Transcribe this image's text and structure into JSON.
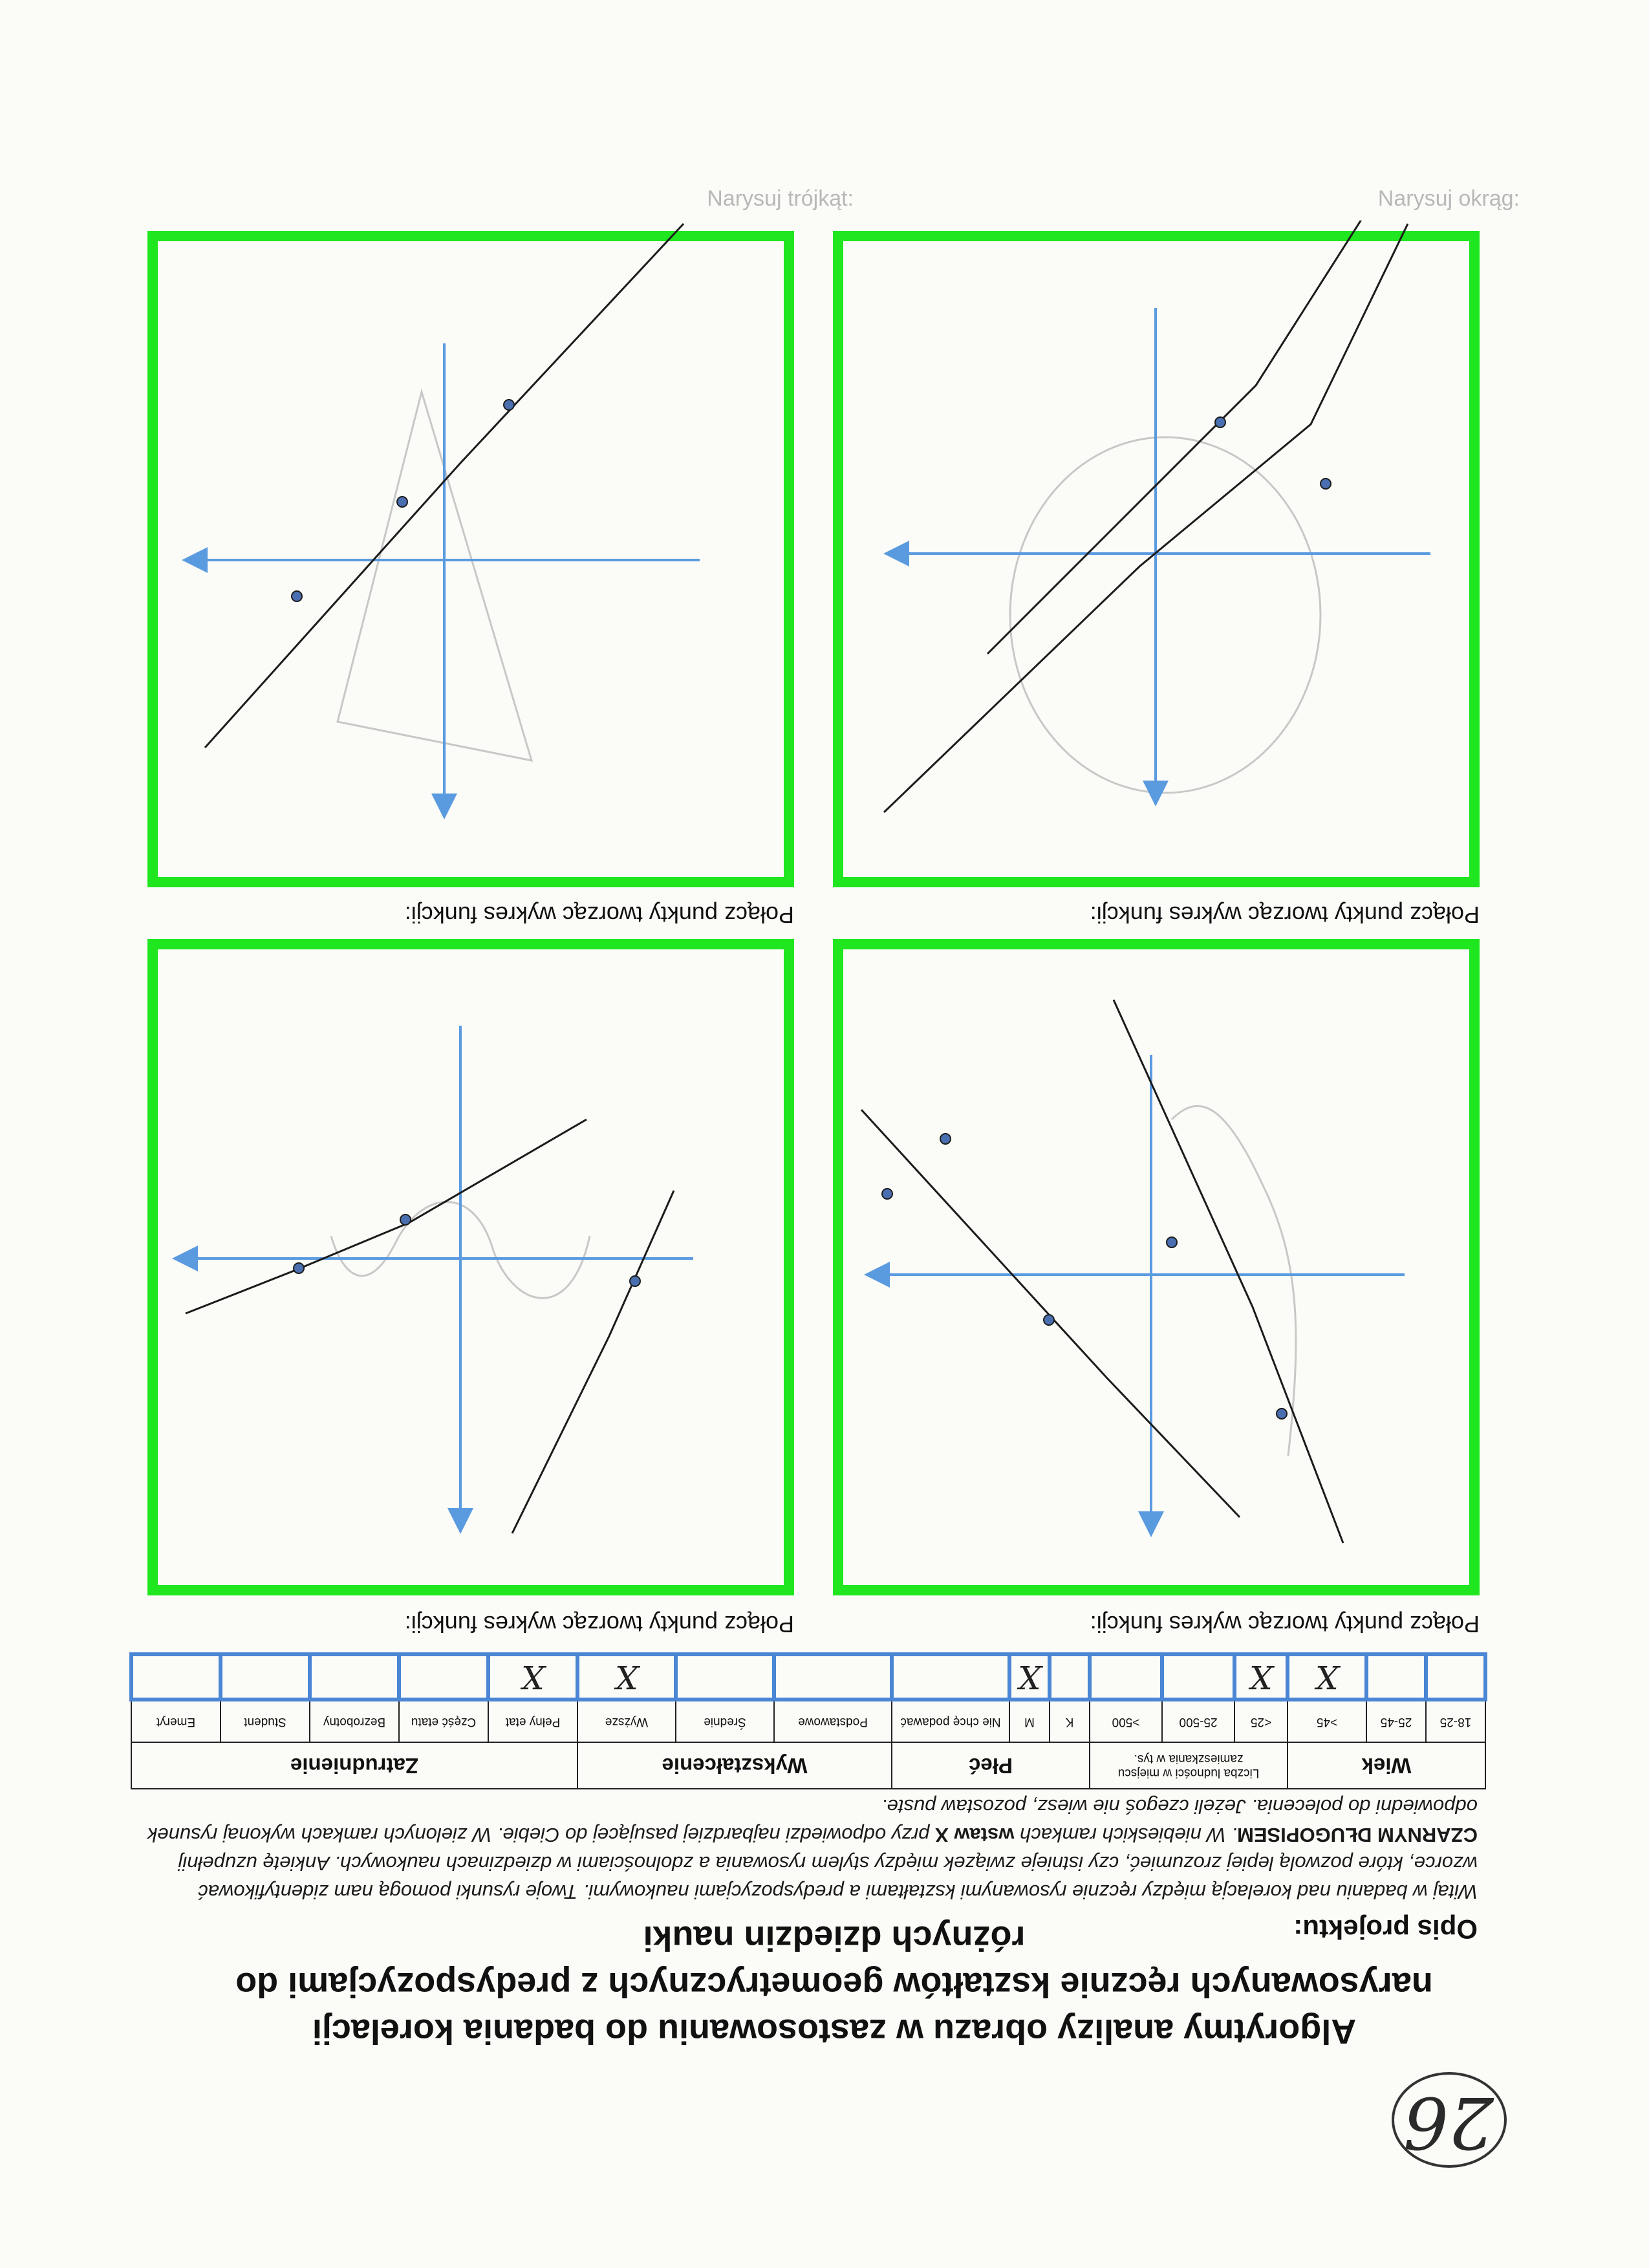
{
  "page_number": "26",
  "title": "Algorytmy analizy obrazu w zastosowaniu do badania korelacji narysowanych ręcznie kształtów geometrycznych z predyspozycjami do różnych dziedzin nauki",
  "description": {
    "heading": "Opis projektu:",
    "body_1": "Witaj w badaniu nad korelacją między ręcznie rysowanymi kształtami a predyspozycjami naukowymi. Twoje rysunki pomogą nam zidentyfikować wzorce, które pozwolą lepiej zrozumieć, czy istnieje związek między stylem rysowania a zdolnościami w dziedzinach naukowych. Ankietę uzupełnij",
    "emph_1": "CZARNYM DŁUGOPISEM",
    "body_2": ". W niebieskich ramkach",
    "emph_2": "wstaw X",
    "body_3": "przy odpowiedzi najbardziej pasującej do Ciebie. W zielonych ramkach wykonaj rysunek odpowiedni do polecenia. Jeżeli czegoś nie wiesz, pozostaw puste."
  },
  "survey": {
    "groups": [
      "Wiek",
      "Liczba ludności w miejscu zamieszkania w tys.",
      "Płeć",
      "Wykształcenie",
      "Zatrudnienie"
    ],
    "age": [
      "18-25",
      "25-45",
      ">45"
    ],
    "population": [
      "<25",
      "25-500",
      ">500"
    ],
    "sex": [
      "K",
      "M",
      "Nie chcę podawać"
    ],
    "education": [
      "Podstawowe",
      "Średnie",
      "Wyższe"
    ],
    "employment": [
      "Pełny etat",
      "Część etatu",
      "Bezrobotny",
      "Student",
      "Emeryt"
    ],
    "answers": [
      "",
      "",
      "X",
      "X",
      "",
      "",
      "",
      "X",
      "",
      "",
      "",
      "X",
      "X",
      "",
      "",
      "",
      ""
    ]
  },
  "tasks": [
    {
      "caption": "Połącz punkty tworząc wykres funkcji:"
    },
    {
      "caption": "Połącz punkty tworząc wykres funkcji:"
    },
    {
      "caption": "Połącz punkty tworząc wykres funkcji:"
    },
    {
      "caption": "Połącz punkty tworząc wykres funkcji:"
    }
  ],
  "ghost_text": {
    "draw_circle": "Narysuj okrąg:",
    "draw_triangle": "Narysuj trójkąt:"
  },
  "colors": {
    "panel_border": "#1fe61f",
    "answer_box": "#4a86d4",
    "axis": "#5a9be0",
    "ink": "#1c1c1c"
  }
}
